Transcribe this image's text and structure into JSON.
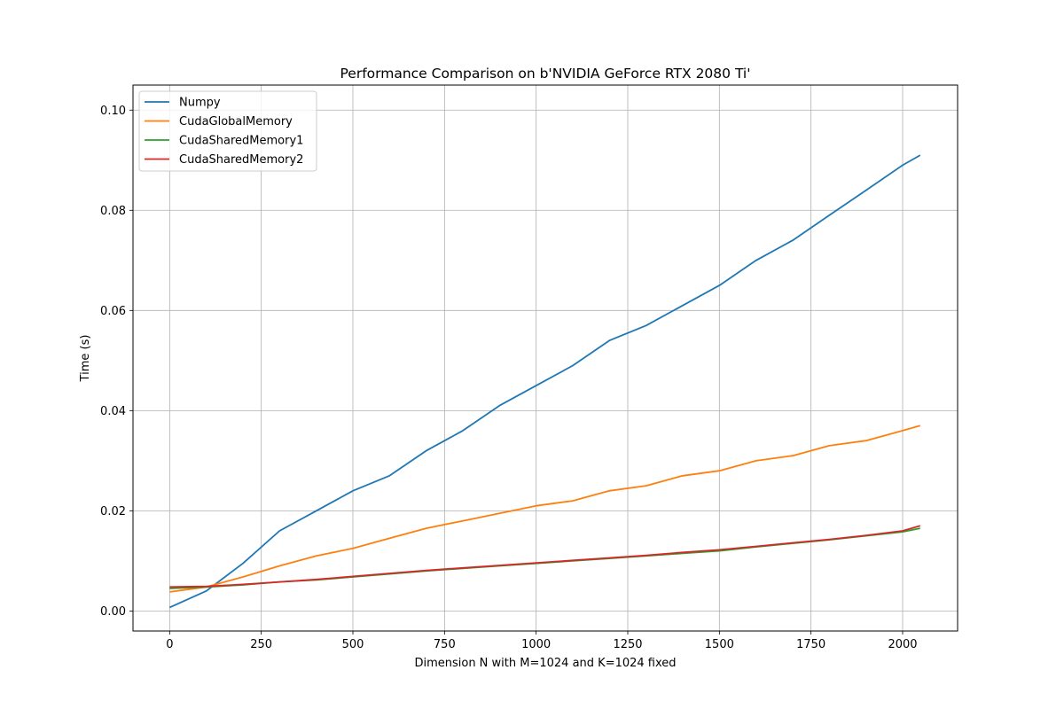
{
  "chart_data": {
    "type": "line",
    "title": "Performance Comparison on b'NVIDIA GeForce RTX 2080 Ti'",
    "xlabel": "Dimension N with M=1024 and K=1024 fixed",
    "ylabel": "Time (s)",
    "xlim": [
      -100,
      2150
    ],
    "ylim": [
      -0.004,
      0.105
    ],
    "xticks": [
      0,
      250,
      500,
      750,
      1000,
      1250,
      1500,
      1750,
      2000
    ],
    "xtick_labels": [
      "0",
      "250",
      "500",
      "750",
      "1000",
      "1250",
      "1500",
      "1750",
      "2000"
    ],
    "yticks": [
      0.0,
      0.02,
      0.04,
      0.06,
      0.08,
      0.1
    ],
    "ytick_labels": [
      "0.00",
      "0.02",
      "0.04",
      "0.06",
      "0.08",
      "0.10"
    ],
    "grid": true,
    "legend_position": "top-left",
    "x": [
      0,
      100,
      200,
      300,
      400,
      500,
      600,
      700,
      800,
      900,
      1000,
      1100,
      1200,
      1300,
      1400,
      1500,
      1600,
      1700,
      1800,
      1900,
      2000,
      2048
    ],
    "series": [
      {
        "name": "Numpy",
        "color": "#1f77b4",
        "values": [
          0.0007,
          0.004,
          0.0095,
          0.016,
          0.02,
          0.024,
          0.027,
          0.032,
          0.036,
          0.041,
          0.045,
          0.049,
          0.054,
          0.057,
          0.061,
          0.065,
          0.07,
          0.074,
          0.079,
          0.084,
          0.089,
          0.091
        ]
      },
      {
        "name": "CudaGlobalMemory",
        "color": "#ff7f0e",
        "values": [
          0.0038,
          0.0048,
          0.0068,
          0.009,
          0.011,
          0.0125,
          0.0145,
          0.0165,
          0.018,
          0.0195,
          0.021,
          0.022,
          0.024,
          0.025,
          0.027,
          0.028,
          0.03,
          0.031,
          0.033,
          0.034,
          0.036,
          0.037
        ]
      },
      {
        "name": "CudaSharedMemory1",
        "color": "#2ca02c",
        "values": [
          0.0045,
          0.0048,
          0.0052,
          0.0058,
          0.0062,
          0.0068,
          0.0074,
          0.008,
          0.0085,
          0.009,
          0.0095,
          0.01,
          0.0105,
          0.011,
          0.0115,
          0.012,
          0.0128,
          0.0135,
          0.0142,
          0.015,
          0.0158,
          0.0165
        ]
      },
      {
        "name": "CudaSharedMemory2",
        "color": "#d62728",
        "values": [
          0.0048,
          0.0049,
          0.0053,
          0.0058,
          0.0063,
          0.0069,
          0.0075,
          0.0081,
          0.0086,
          0.0091,
          0.0096,
          0.0101,
          0.0106,
          0.0111,
          0.0117,
          0.0122,
          0.0129,
          0.0136,
          0.0143,
          0.0151,
          0.016,
          0.017
        ]
      }
    ]
  }
}
